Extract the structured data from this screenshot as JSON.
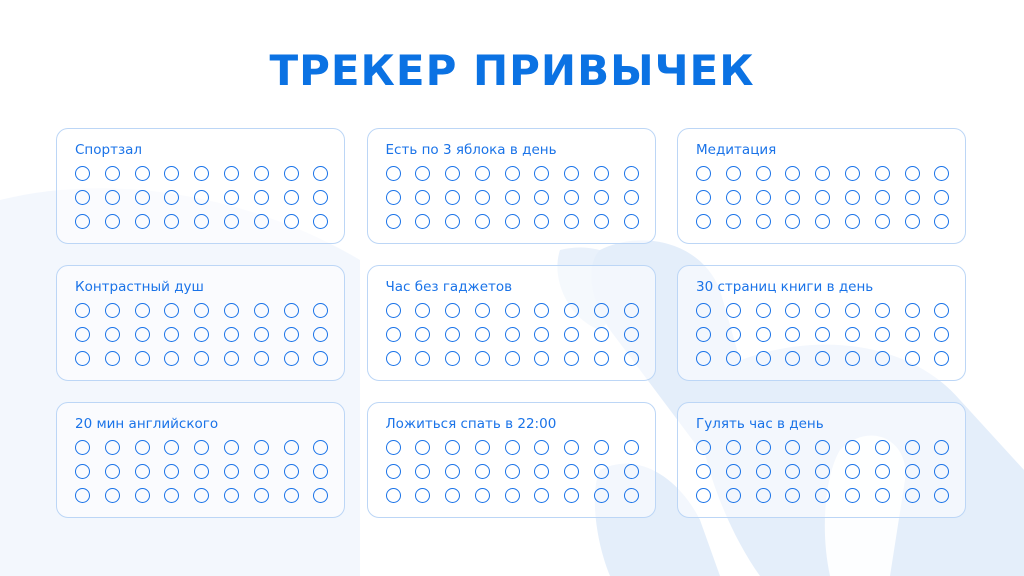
{
  "title": "ТРЕКЕР ПРИВЫЧЕК",
  "colors": {
    "accent": "#1a73e8",
    "title": "#0b72e3",
    "card_border": "#bcd6f6",
    "background_shapes": "#e4eefa"
  },
  "days_per_habit": 27,
  "habits": [
    {
      "label": "Спортзал",
      "checked": 0
    },
    {
      "label": "Есть по 3 яблока в день",
      "checked": 0
    },
    {
      "label": "Медитация",
      "checked": 0
    },
    {
      "label": "Контрастный душ",
      "checked": 0
    },
    {
      "label": "Час без гаджетов",
      "checked": 0
    },
    {
      "label": "30 страниц книги в день",
      "checked": 0
    },
    {
      "label": "20 мин английского",
      "checked": 0
    },
    {
      "label": "Ложиться спать в 22:00",
      "checked": 0
    },
    {
      "label": "Гулять час в день",
      "checked": 0
    }
  ]
}
